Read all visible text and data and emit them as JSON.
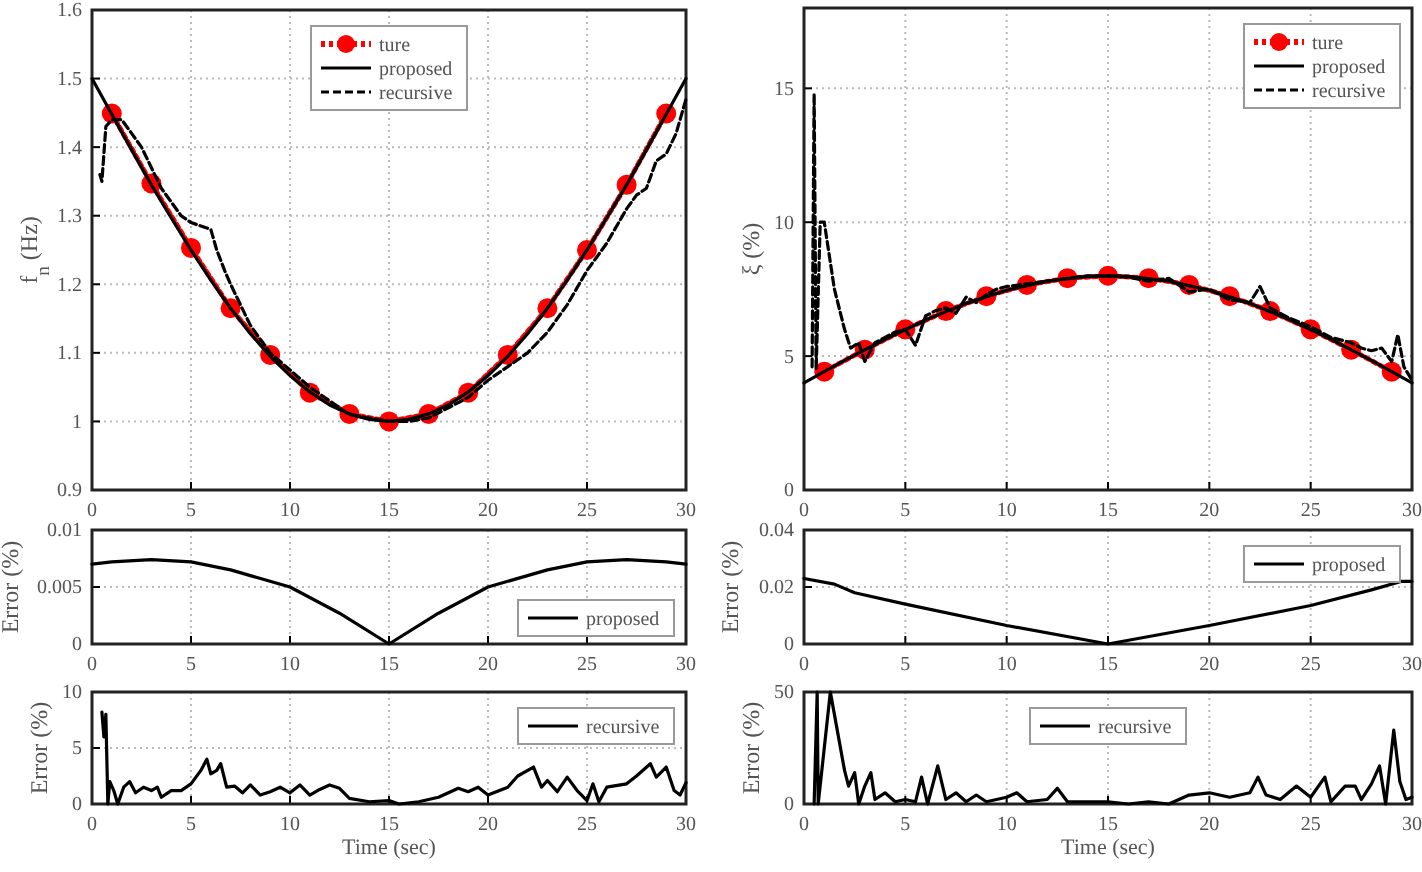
{
  "chart_data": [
    {
      "type": "line",
      "ylabel": "f$_{n}$ (Hz)",
      "xlim": [
        0,
        30
      ],
      "ylim": [
        0.9,
        1.6
      ],
      "xticks": [
        0,
        5,
        10,
        15,
        20,
        25,
        30
      ],
      "yticks": [
        0.9,
        1,
        1.1,
        1.2,
        1.3,
        1.4,
        1.5,
        1.6
      ],
      "grid": true,
      "legend": "top",
      "series": [
        {
          "name": "ture",
          "color": "#ff0000",
          "marker": "circle",
          "line_style": "dotted",
          "x": [
            1,
            3,
            5,
            7,
            9,
            11,
            13,
            15,
            17,
            19,
            21,
            23,
            25,
            27,
            29
          ],
          "values": [
            1.449,
            1.347,
            1.253,
            1.165,
            1.097,
            1.042,
            1.011,
            1.0,
            1.011,
            1.042,
            1.097,
            1.165,
            1.25,
            1.345,
            1.449
          ]
        },
        {
          "name": "proposed",
          "color": "#000000",
          "line_style": "solid",
          "x": [
            0,
            1,
            2,
            3,
            4,
            5,
            6,
            7,
            8,
            9,
            10,
            11,
            12,
            13,
            14,
            15,
            16,
            17,
            18,
            19,
            20,
            21,
            22,
            23,
            24,
            25,
            26,
            27,
            28,
            29,
            30
          ],
          "values": [
            1.5,
            1.448,
            1.396,
            1.345,
            1.297,
            1.25,
            1.206,
            1.165,
            1.128,
            1.095,
            1.067,
            1.043,
            1.024,
            1.011,
            1.003,
            1.0,
            1.003,
            1.011,
            1.024,
            1.043,
            1.067,
            1.095,
            1.128,
            1.165,
            1.206,
            1.25,
            1.297,
            1.345,
            1.396,
            1.448,
            1.5
          ]
        },
        {
          "name": "recursive",
          "color": "#000000",
          "line_style": "dashed",
          "x": [
            0.4,
            0.5,
            0.6,
            0.7,
            1,
            1.5,
            2,
            2.5,
            3,
            3.5,
            4,
            4.5,
            5,
            5.5,
            6,
            6.3,
            6.7,
            7,
            7.5,
            8,
            8.5,
            9,
            10,
            11,
            12,
            13,
            14,
            15,
            16,
            17,
            18,
            19,
            20,
            21,
            22,
            23,
            24,
            25,
            26,
            27,
            27.5,
            28,
            28.5,
            29,
            29.5,
            30
          ],
          "values": [
            1.36,
            1.35,
            1.39,
            1.43,
            1.44,
            1.44,
            1.42,
            1.4,
            1.37,
            1.34,
            1.32,
            1.3,
            1.29,
            1.285,
            1.28,
            1.25,
            1.22,
            1.2,
            1.17,
            1.14,
            1.12,
            1.1,
            1.075,
            1.05,
            1.03,
            1.01,
            1.005,
            1.0,
            1.0,
            1.005,
            1.02,
            1.035,
            1.06,
            1.08,
            1.1,
            1.13,
            1.17,
            1.22,
            1.26,
            1.31,
            1.33,
            1.34,
            1.38,
            1.39,
            1.42,
            1.47
          ]
        }
      ]
    },
    {
      "type": "line",
      "ylabel": "ξ (%)",
      "xlim": [
        0,
        30
      ],
      "ylim": [
        0,
        18
      ],
      "xticks": [
        0,
        5,
        10,
        15,
        20,
        25,
        30
      ],
      "yticks": [
        0,
        5,
        10,
        15
      ],
      "grid": true,
      "legend": "top right",
      "series": [
        {
          "name": "ture",
          "color": "#ff0000",
          "marker": "circle",
          "line_style": "dotted",
          "x": [
            1,
            3,
            5,
            7,
            9,
            11,
            13,
            15,
            17,
            19,
            21,
            23,
            25,
            27,
            29
          ],
          "values": [
            4.42,
            5.24,
            6.0,
            6.68,
            7.24,
            7.66,
            7.91,
            8.0,
            7.91,
            7.66,
            7.24,
            6.68,
            6.0,
            5.24,
            4.42
          ]
        },
        {
          "name": "proposed",
          "color": "#000000",
          "line_style": "solid",
          "x": [
            0,
            2,
            4,
            6,
            8,
            10,
            12,
            14,
            15,
            16,
            18,
            20,
            22,
            24,
            26,
            28,
            30
          ],
          "values": [
            4.0,
            4.84,
            5.63,
            6.35,
            6.97,
            7.46,
            7.8,
            7.98,
            8.0,
            7.98,
            7.8,
            7.46,
            6.97,
            6.35,
            5.63,
            4.84,
            4.0
          ]
        },
        {
          "name": "recursive",
          "color": "#000000",
          "line_style": "dashed",
          "x": [
            0.4,
            0.5,
            0.6,
            0.8,
            1.0,
            1.2,
            1.5,
            2.0,
            2.3,
            2.7,
            3.0,
            3.5,
            4.0,
            4.5,
            5.0,
            5.5,
            6.0,
            6.5,
            7.0,
            7.5,
            8.0,
            8.5,
            9.0,
            9.5,
            10,
            11,
            12,
            13,
            14,
            15,
            16,
            17,
            18,
            19,
            20,
            21,
            22,
            22.5,
            23,
            24,
            25,
            26,
            27,
            27.5,
            28,
            28.5,
            29,
            29.3,
            29.6,
            30
          ],
          "values": [
            4.6,
            14.8,
            4.5,
            10.0,
            10.0,
            9.0,
            7.5,
            6.0,
            5.3,
            5.5,
            4.8,
            5.5,
            5.7,
            5.9,
            6.0,
            5.4,
            6.5,
            6.7,
            6.8,
            6.6,
            7.2,
            7.0,
            7.3,
            7.5,
            7.6,
            7.7,
            7.8,
            7.9,
            8.0,
            8.0,
            7.95,
            7.8,
            7.9,
            7.4,
            7.5,
            7.1,
            7.0,
            7.6,
            6.8,
            6.4,
            6.1,
            5.7,
            5.5,
            5.3,
            5.2,
            5.3,
            4.8,
            5.8,
            4.6,
            4.1
          ]
        }
      ]
    },
    {
      "type": "line",
      "ylabel": "Error (%)",
      "xlim": [
        0,
        30
      ],
      "ylim": [
        0,
        0.01
      ],
      "xticks": [
        0,
        5,
        10,
        15,
        20,
        25,
        30
      ],
      "yticks": [
        0,
        0.005,
        0.01
      ],
      "grid": true,
      "legend": "bottom right",
      "series": [
        {
          "name": "proposed",
          "color": "#000000",
          "line_style": "solid",
          "x": [
            0,
            1,
            3,
            5,
            7,
            10,
            12.5,
            15,
            17.5,
            20,
            23,
            25,
            27,
            29,
            30
          ],
          "values": [
            0.007,
            0.0072,
            0.0074,
            0.0072,
            0.0065,
            0.005,
            0.0027,
            0,
            0.0027,
            0.005,
            0.0065,
            0.0072,
            0.0074,
            0.0072,
            0.007
          ]
        }
      ]
    },
    {
      "type": "line",
      "ylabel": "Error (%)",
      "xlim": [
        0,
        30
      ],
      "ylim": [
        0,
        0.04
      ],
      "xticks": [
        0,
        5,
        10,
        15,
        20,
        25,
        30
      ],
      "yticks": [
        0,
        0.02,
        0.04
      ],
      "grid": true,
      "legend": "top right",
      "series": [
        {
          "name": "proposed",
          "color": "#000000",
          "line_style": "solid",
          "x": [
            0,
            1.5,
            2.5,
            5,
            10,
            15,
            20,
            25,
            28,
            29.5,
            30
          ],
          "values": [
            0.023,
            0.021,
            0.018,
            0.014,
            0.0065,
            0,
            0.0065,
            0.0135,
            0.019,
            0.022,
            0.022
          ]
        }
      ]
    },
    {
      "type": "line",
      "xlabel": "Time (sec)",
      "ylabel": "Error (%)",
      "xlim": [
        0,
        30
      ],
      "ylim": [
        0,
        10
      ],
      "xticks": [
        0,
        5,
        10,
        15,
        20,
        25,
        30
      ],
      "yticks": [
        0,
        5,
        10
      ],
      "grid": true,
      "legend": "top right",
      "series": [
        {
          "name": "recursive",
          "color": "#000000",
          "line_style": "solid",
          "x": [
            0.5,
            0.6,
            0.7,
            0.8,
            0.9,
            1.1,
            1.3,
            1.6,
            1.9,
            2.2,
            2.6,
            3,
            3.3,
            3.5,
            4,
            4.5,
            5,
            5.5,
            5.8,
            6,
            6.3,
            6.5,
            6.8,
            7.2,
            7.6,
            8,
            8.5,
            9,
            9.5,
            10,
            10.5,
            11,
            11.5,
            12,
            12.5,
            13,
            14,
            15,
            15.5,
            16.5,
            17.5,
            18.5,
            19,
            19.5,
            20,
            21,
            21.5,
            22.3,
            22.7,
            23,
            23.5,
            24,
            24.5,
            25,
            25.3,
            25.6,
            26,
            27,
            27.5,
            28.2,
            28.5,
            29,
            29.4,
            29.7,
            30
          ],
          "values": [
            8.2,
            6,
            8,
            0,
            2,
            1.2,
            0,
            1.5,
            2,
            1,
            1.5,
            1.2,
            1.5,
            0.6,
            1.2,
            1.2,
            1.8,
            3,
            4,
            2.7,
            3,
            3.6,
            1.5,
            1.6,
            1,
            1.7,
            0.8,
            1.1,
            1.5,
            1,
            1.7,
            0.8,
            1.3,
            1.7,
            1.4,
            0.5,
            0.2,
            0.3,
            0,
            0.2,
            0.6,
            1.4,
            1.1,
            1.5,
            0.8,
            1.5,
            2.5,
            3.3,
            1.5,
            2.1,
            1.1,
            2.4,
            1.2,
            0.3,
            1.8,
            0.2,
            1.5,
            1.8,
            2.5,
            3.6,
            2.4,
            3.3,
            1.2,
            0.8,
            1.9
          ]
        }
      ]
    },
    {
      "type": "line",
      "xlabel": "Time (sec)",
      "ylabel": "Error (%)",
      "xlim": [
        0,
        30
      ],
      "ylim": [
        0,
        50
      ],
      "xticks": [
        0,
        5,
        10,
        15,
        20,
        25,
        30
      ],
      "yticks": [
        0,
        50
      ],
      "grid": true,
      "legend": "top",
      "series": [
        {
          "name": "recursive",
          "color": "#000000",
          "line_style": "solid",
          "x": [
            0.5,
            0.65,
            0.7,
            1.3,
            1.6,
            2,
            2.2,
            2.5,
            2.7,
            3,
            3.3,
            3.5,
            4,
            4.5,
            5,
            5.5,
            5.8,
            6.1,
            6.6,
            7,
            7.5,
            8,
            8.5,
            9,
            10,
            10.5,
            11,
            12,
            12.5,
            13,
            14,
            15,
            16,
            17,
            18,
            19,
            20,
            21,
            22,
            22.4,
            22.8,
            23.5,
            24.3,
            25,
            25.7,
            26,
            26.7,
            27.2,
            27.5,
            28,
            28.4,
            28.7,
            29.1,
            29.4,
            29.7,
            30
          ],
          "values": [
            0,
            50,
            0,
            50,
            35,
            15,
            8,
            14,
            0,
            8,
            14,
            2,
            5,
            1,
            2,
            1,
            12,
            0,
            17,
            2,
            5,
            1,
            4,
            1,
            3,
            5,
            1,
            2,
            7,
            1,
            1,
            1,
            0,
            1,
            0,
            4,
            5,
            3,
            5,
            12,
            4,
            2,
            8,
            3,
            12,
            1,
            8,
            8,
            2,
            9,
            17,
            0,
            33,
            10,
            2,
            3
          ]
        }
      ]
    }
  ]
}
